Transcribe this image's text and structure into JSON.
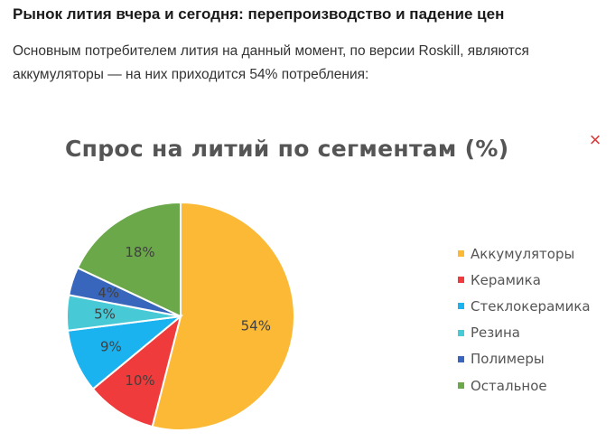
{
  "article": {
    "heading": "Рынок лития вчера и сегодня: перепроизводство и падение цен",
    "paragraph": "Основным потребителем лития на данный момент, по версии Roskill, являются аккумуляторы — на них приходится 54% потребления:"
  },
  "close_icon": "×",
  "chart_data": {
    "type": "pie",
    "title": "Спрос на литий по сегментам (%)",
    "categories": [
      "Аккумуляторы",
      "Керамика",
      "Стеклокерамика",
      "Резина",
      "Полимеры",
      "Остальное"
    ],
    "values": [
      54,
      10,
      9,
      5,
      4,
      18
    ],
    "labels": [
      "54%",
      "10%",
      "9%",
      "5%",
      "4%",
      "18%"
    ],
    "colors": [
      "#fbb935",
      "#ef3b3b",
      "#1ab3ef",
      "#47c9d6",
      "#3866bd",
      "#6ba84a"
    ],
    "legend_position": "right"
  }
}
